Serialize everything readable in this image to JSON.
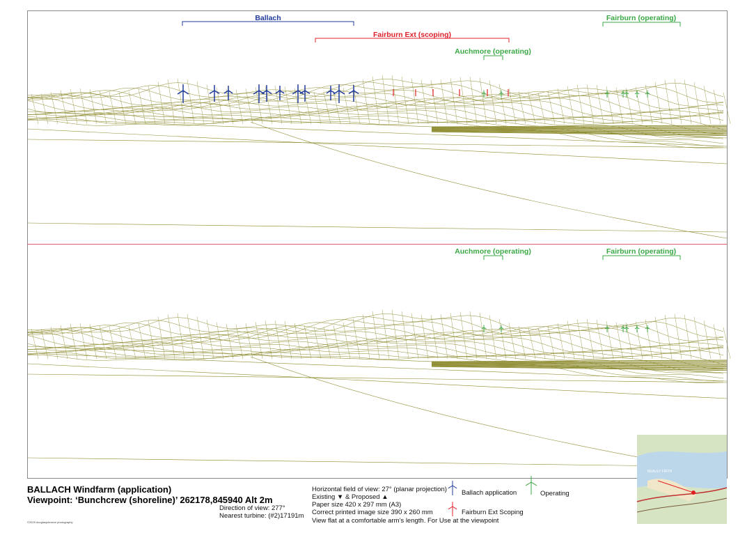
{
  "top_labels": [
    "Ballach",
    "Fairburn Ext (scoping)",
    "Auchmore (operating)",
    "Fairburn (operating)"
  ],
  "bottom_labels": [
    "Auchmore (operating)",
    "Fairburn (operating)"
  ],
  "footer": {
    "title": "BALLACH Windfarm (application)",
    "viewpoint": "Viewpoint: ‘Bunchcrew (shoreline)’ 262178,845940 Alt 2m",
    "direction": "Direction of view: 277°",
    "nearest": "Nearest turbine: (#2)17191m",
    "info": [
      "Horizontal field of view: 27° (planar projection)",
      "Existing ▼ & Proposed ▲",
      "Paper size 420 x 297 mm (A3)",
      "Correct printed image size 390 x 260 mm",
      "View flat at a comfortable arm’s length. For Use at the viewpoint"
    ],
    "copyright": "©2025 douglasjohnston photography"
  },
  "legend": [
    "Ballach application",
    "Fairburn Ext Scoping",
    "Operating"
  ],
  "map_label": "BEAULY FIRTH"
}
